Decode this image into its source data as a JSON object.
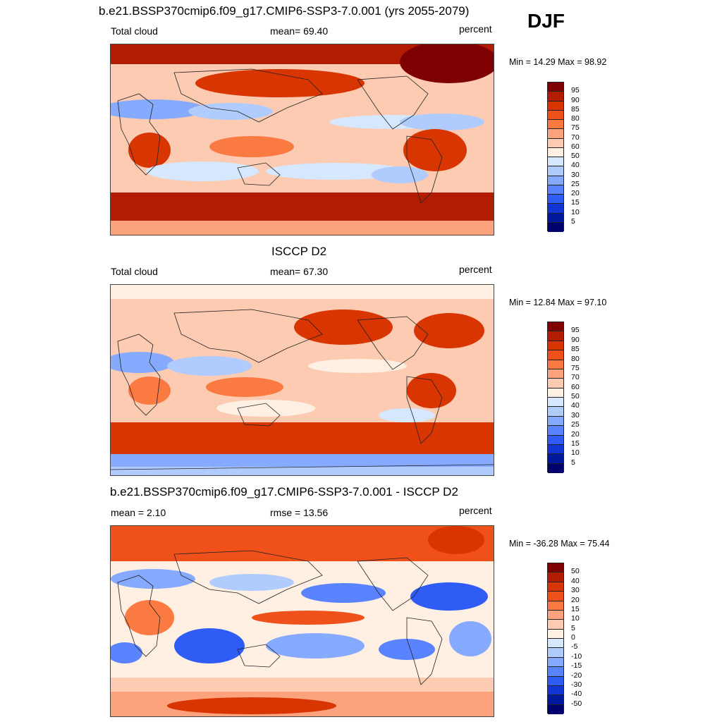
{
  "season": "DJF",
  "panels": [
    {
      "title": "b.e21.BSSP370cmip6.f09_g17.CMIP6-SSP3-7.0.001 (yrs 2055-2079)",
      "left_text": "Total cloud",
      "center_text": "mean=  69.40",
      "right_text": "percent",
      "minmax": "Min =  14.29 Max =  98.92",
      "colorbar_labels": [
        "95",
        "90",
        "85",
        "80",
        "75",
        "70",
        "60",
        "50",
        "40",
        "30",
        "25",
        "20",
        "15",
        "10",
        "5"
      ]
    },
    {
      "title": "ISCCP D2",
      "left_text": "Total cloud",
      "center_text": "mean=  67.30",
      "right_text": "percent",
      "minmax": "Min =  12.84 Max =  97.10",
      "colorbar_labels": [
        "95",
        "90",
        "85",
        "80",
        "75",
        "70",
        "60",
        "50",
        "40",
        "30",
        "25",
        "20",
        "15",
        "10",
        "5"
      ]
    },
    {
      "title": "b.e21.BSSP370cmip6.f09_g17.CMIP6-SSP3-7.0.001 - ISCCP D2",
      "left_text": "mean =   2.10",
      "center_text": "rmse =  13.56",
      "right_text": "percent",
      "minmax": "Min = -36.28 Max =  75.44",
      "colorbar_labels": [
        "50",
        "40",
        "30",
        "20",
        "15",
        "10",
        "5",
        "0",
        "-5",
        "-10",
        "-15",
        "-20",
        "-30",
        "-40",
        "-50"
      ]
    }
  ],
  "colorbar_colors": [
    "#7f0000",
    "#b21c00",
    "#d83500",
    "#f0501a",
    "#fa7a42",
    "#fca27d",
    "#fdcbb1",
    "#fff0e3",
    "#d6e8ff",
    "#b0ccff",
    "#86aaff",
    "#5a84ff",
    "#2e5cf5",
    "#1236d6",
    "#00199e",
    "#00006f"
  ]
}
